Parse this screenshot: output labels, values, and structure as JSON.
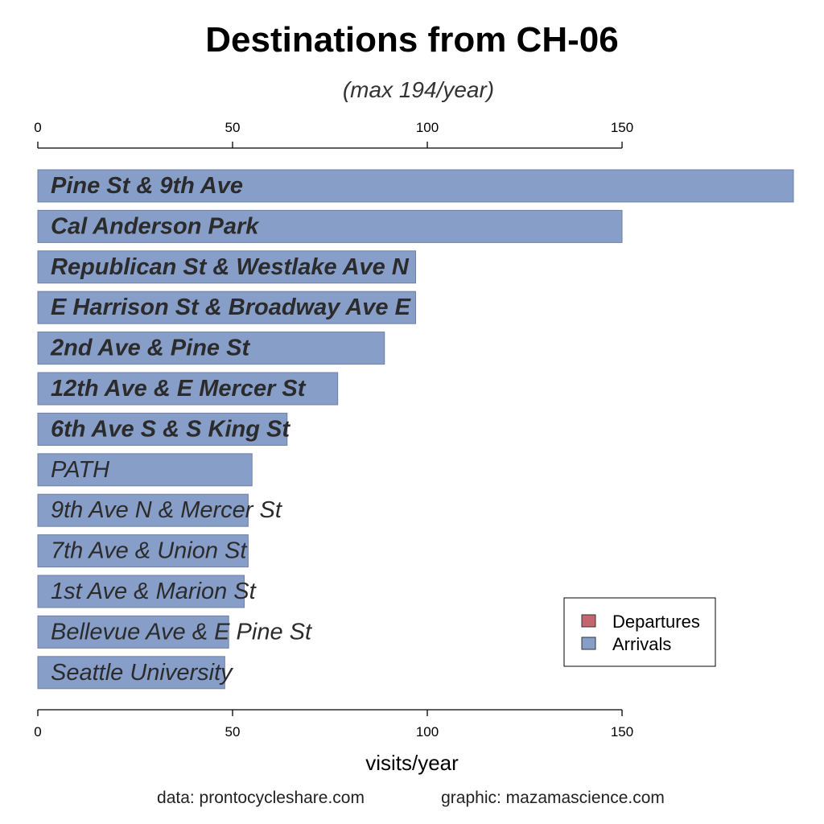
{
  "chart_data": {
    "type": "bar",
    "orientation": "horizontal",
    "title": "Destinations from CH-06",
    "subtitle": "(max 194/year)",
    "xlabel": "visits/year",
    "xlim": [
      0,
      194
    ],
    "xticks": [
      0,
      50,
      100,
      150
    ],
    "grid": false,
    "legend_position": "bottom-right",
    "legend": [
      {
        "label": "Departures",
        "color": "#c4666f"
      },
      {
        "label": "Arrivals",
        "color": "#879ec9"
      }
    ],
    "series": [
      {
        "name": "Arrivals",
        "color": "#879ec9",
        "categories": [
          "Pine St & 9th Ave",
          "Cal Anderson Park",
          "Republican St & Westlake Ave N",
          "E Harrison St & Broadway Ave E",
          "2nd Ave & Pine St",
          "12th Ave & E Mercer St",
          "6th Ave S & S King St",
          "PATH",
          "9th Ave N & Mercer St",
          "7th Ave & Union St",
          "1st Ave & Marion St",
          "Bellevue Ave & E Pine St",
          "Seattle University"
        ],
        "values": [
          194,
          150,
          97,
          97,
          89,
          77,
          64,
          55,
          54,
          54,
          53,
          49,
          48
        ]
      }
    ],
    "bold_label_count": 7
  },
  "credits": {
    "data": "data:  prontocycleshare.com",
    "graphic": "graphic:  mazamascience.com"
  }
}
